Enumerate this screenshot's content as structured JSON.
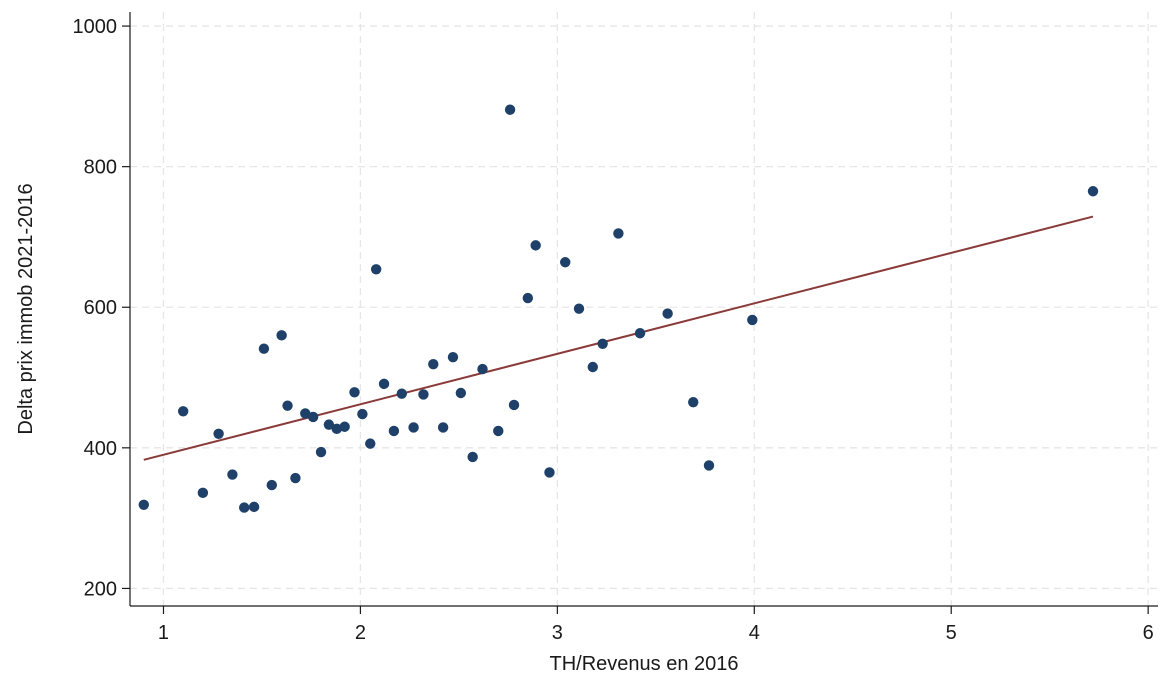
{
  "chart_data": {
    "type": "scatter",
    "xlabel": "TH/Revenus en 2016",
    "ylabel": "Delta prix immob 2021-2016",
    "xlim": [
      0.83,
      6.05
    ],
    "ylim": [
      175,
      1020
    ],
    "xticks": [
      1,
      2,
      3,
      4,
      5,
      6
    ],
    "yticks": [
      200,
      400,
      600,
      800,
      1000
    ],
    "grid": true,
    "colors": {
      "points": "#1f4068",
      "fit_line": "#8b3a3a",
      "grid": "#e6e6e6",
      "axis": "#1a1a1a"
    },
    "points": [
      [
        0.9,
        319
      ],
      [
        1.1,
        452
      ],
      [
        1.2,
        336
      ],
      [
        1.28,
        420
      ],
      [
        1.35,
        362
      ],
      [
        1.41,
        315
      ],
      [
        1.46,
        316
      ],
      [
        1.51,
        541
      ],
      [
        1.55,
        347
      ],
      [
        1.6,
        560
      ],
      [
        1.63,
        460
      ],
      [
        1.67,
        357
      ],
      [
        1.72,
        449
      ],
      [
        1.76,
        444
      ],
      [
        1.8,
        394
      ],
      [
        1.84,
        433
      ],
      [
        1.88,
        427
      ],
      [
        1.92,
        430
      ],
      [
        1.97,
        479
      ],
      [
        2.01,
        448
      ],
      [
        2.05,
        406
      ],
      [
        2.08,
        654
      ],
      [
        2.12,
        491
      ],
      [
        2.17,
        424
      ],
      [
        2.21,
        477
      ],
      [
        2.27,
        429
      ],
      [
        2.32,
        476
      ],
      [
        2.37,
        519
      ],
      [
        2.42,
        429
      ],
      [
        2.47,
        529
      ],
      [
        2.51,
        478
      ],
      [
        2.57,
        387
      ],
      [
        2.62,
        512
      ],
      [
        2.7,
        424
      ],
      [
        2.76,
        881
      ],
      [
        2.78,
        461
      ],
      [
        2.85,
        613
      ],
      [
        2.89,
        688
      ],
      [
        2.96,
        365
      ],
      [
        3.04,
        664
      ],
      [
        3.11,
        598
      ],
      [
        3.18,
        515
      ],
      [
        3.23,
        548
      ],
      [
        3.31,
        705
      ],
      [
        3.42,
        563
      ],
      [
        3.56,
        591
      ],
      [
        3.69,
        465
      ],
      [
        3.77,
        375
      ],
      [
        3.99,
        582
      ],
      [
        5.72,
        765
      ]
    ],
    "fit_line": {
      "x": [
        0.9,
        5.72
      ],
      "y": [
        383,
        729
      ]
    }
  }
}
